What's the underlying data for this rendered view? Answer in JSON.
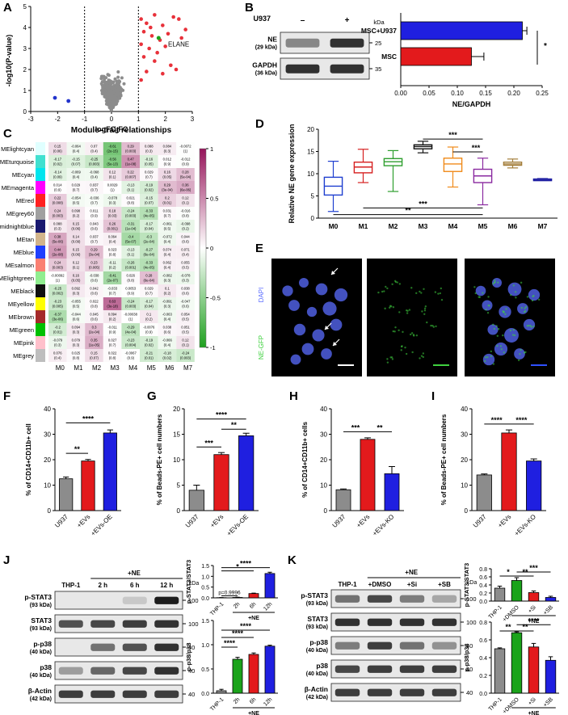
{
  "panels": [
    "A",
    "B",
    "C",
    "D",
    "E",
    "F",
    "G",
    "H",
    "I",
    "J",
    "K"
  ],
  "volcano": {
    "xlabel": "log2FC",
    "ylabel": "-log10(P-value)",
    "xticks": [
      "-3",
      "-2",
      "-1",
      "0",
      "1",
      "2",
      "3"
    ],
    "yticks": [
      "0",
      "1",
      "2",
      "3",
      "4",
      "5"
    ],
    "annotation": "ELANE",
    "colors": {
      "ns": "#8c8c8c",
      "up": "#e8313a",
      "down": "#2233cc",
      "hit": "#1aa31a"
    }
  },
  "blotB": {
    "header": "U937",
    "lanes": [
      "–",
      "+"
    ],
    "kda_label": "kDa",
    "rows": [
      {
        "name": "NE",
        "sub": "(29 kDa)",
        "marker": "25"
      },
      {
        "name": "GAPDH",
        "sub": "(36 kDa)",
        "marker": "35"
      }
    ]
  },
  "heatmap": {
    "title": "Module–trait relationships",
    "modules": [
      "MElightcyan",
      "MEturquoise",
      "MEcyan",
      "MEmagenta",
      "MEred",
      "MEgrey60",
      "MEmidnightblue",
      "MEtan",
      "MEblue",
      "MEsalmon",
      "MElightgreen",
      "MEblack",
      "MEyellow",
      "MEbrown",
      "MEgreen",
      "MEpink",
      "MEgrey"
    ],
    "module_colors": [
      "#e0ffff",
      "#40e0d0",
      "#00e5ee",
      "#ff00ff",
      "#ff2020",
      "#a0a0a0",
      "#191970",
      "#d2b48c",
      "#1f3fff",
      "#fa8072",
      "#90ee90",
      "#111111",
      "#ffff00",
      "#a52a2a",
      "#00c000",
      "#ffc0cb",
      "#bebebe"
    ],
    "traits": [
      "M0",
      "M1",
      "M2",
      "M3",
      "M4",
      "M5",
      "M6",
      "M7"
    ],
    "colorbar_ticks": [
      "1",
      "0.5",
      "0",
      "-0.5",
      "-1"
    ],
    "cells": [
      [
        "0.15",
        "-0.064",
        "0.07",
        "-0.61",
        "0.29",
        "0.088",
        "0.084",
        "-0.0072"
      ],
      [
        "-0.17",
        "-0.15",
        "-0.25",
        "-0.56",
        "0.47",
        "-0.16",
        "0.012",
        "-0.012"
      ],
      [
        "-0.14",
        "-0.069",
        "-0.068",
        "0.12",
        "0.22",
        "0.029",
        "0.16",
        "0.28"
      ],
      [
        "0.014",
        "0.029",
        "0.037",
        "0.0029",
        "-0.13",
        "-0.19",
        "0.29",
        "0.36"
      ],
      [
        "0.22",
        "-0.054",
        "-0.036",
        "-0.078",
        "0.021",
        "-0.15",
        "0.2",
        "0.12"
      ],
      [
        "0.24",
        "0.098",
        "0.011",
        "0.18",
        "-0.24",
        "-0.33",
        "0.031",
        "-0.016"
      ],
      [
        "0.088",
        "0.15",
        "0.043",
        "0.26",
        "-0.31",
        "-0.17",
        "-0.061",
        "-0.098"
      ],
      [
        "0.38",
        "0.14",
        "0.037",
        "0.064",
        "-0.4",
        "-0.3",
        "-0.072",
        "0.044"
      ],
      [
        "0.44",
        "0.15",
        "0.29",
        "0.023",
        "-0.13",
        "-0.27",
        "0.074",
        "0.071"
      ],
      [
        "0.24",
        "0.12",
        "0.23",
        "-0.11",
        "-0.26",
        "-0.33",
        "0.062",
        "0.055"
      ],
      [
        "-0.00092",
        "0.16",
        "-0.038",
        "-0.41",
        "0.026",
        "0.28",
        "-0.082",
        "-0.078"
      ],
      [
        "-0.25",
        "0.092",
        "0.042",
        "-0.033",
        "0.0053",
        "0.029",
        "0.1",
        "0.038"
      ],
      [
        "-0.23",
        "-0.055",
        "0.022",
        "0.63",
        "-0.24",
        "-0.17",
        "-0.091",
        "-0.047"
      ],
      [
        "-0.37",
        "-0.044",
        "0.045",
        "0.094",
        "-0.00038",
        "0.1",
        "-0.063",
        "0.054"
      ],
      [
        "-0.2",
        "0.094",
        "0.3",
        "-0.011",
        "-0.29",
        "-0.0076",
        "0.038",
        "0.051"
      ],
      [
        "-0.079",
        "0.079",
        "0.35",
        "0.027",
        "-0.23",
        "-0.19",
        "-0.066",
        "0.12"
      ],
      [
        "0.076",
        "0.025",
        "0.15",
        "0.022",
        "-0.0067",
        "-0.21",
        "-0.18",
        "-0.24"
      ]
    ],
    "pvals": [
      [
        "(0.06)",
        "(0.4)",
        "(0.4)",
        "(2e-15)",
        "(0.003)",
        "(0.3)",
        "(0.3)",
        "(1)"
      ],
      [
        "(0.02)",
        "(0.07)",
        "(0.003)",
        "(5e-13)",
        "(1e-08)",
        "(0.05)",
        "(0.9)",
        "(0.9)"
      ],
      [
        "(0.09)",
        "(0.4)",
        "(0.4)",
        "(0.1)",
        "(0.007)",
        "(0.7)",
        "(0.05)",
        "(5e-04)"
      ],
      [
        "(0.9)",
        "(0.7)",
        "(0.7)",
        "(1)",
        "(0.1)",
        "(0.02)",
        "(3e-04)",
        "(6e-06)"
      ],
      [
        "(0.008)",
        "(0.5)",
        "(0.7)",
        "(0.3)",
        "(0.8)",
        "(0.07)",
        "(0.01)",
        "(0.1)"
      ],
      [
        "(0.003)",
        "(0.2)",
        "(0.9)",
        "(0.03)",
        "(0.003)",
        "(4e-05)",
        "(0.7)",
        "(0.8)"
      ],
      [
        "(0.3)",
        "(0.06)",
        "(0.6)",
        "(0.001)",
        "(1e-04)",
        "(0.04)",
        "(0.5)",
        "(0.2)"
      ],
      [
        "(5e-06)",
        "(0.09)",
        "(0.7)",
        "(0.4)",
        "(5e-07)",
        "(2e-04)",
        "(0.4)",
        "(0.6)"
      ],
      [
        "(2e-08)",
        "(0.06)",
        "(3e-04)",
        "(0.8)",
        "(0.1)",
        "(6e-04)",
        "(0.4)",
        "(0.4)"
      ],
      [
        "(0.003)",
        "(0.1)",
        "(0.005)",
        "(0.2)",
        "(0.001)",
        "(4e-05)",
        "(0.4)",
        "(0.5)"
      ],
      [
        "(1)",
        "(0.05)",
        "(0.6)",
        "(2e-07)",
        "(0.8)",
        "(6e-04)",
        "(0.3)",
        "(0.3)"
      ],
      [
        "(0.002)",
        "(0.3)",
        "(0.6)",
        "(0.7)",
        "(0.9)",
        "(0.7)",
        "(0.2)",
        "(0.6)"
      ],
      [
        "(0.005)",
        "(0.5)",
        "(0.8)",
        "(3e-18)",
        "(0.003)",
        "(0.04)",
        "(0.3)",
        "(0.6)"
      ],
      [
        "(3e-06)",
        "(0.6)",
        "(0.6)",
        "(0.2)",
        "(1)",
        "(0.2)",
        "(0.4)",
        "(0.5)"
      ],
      [
        "(0.01)",
        "(0.3)",
        "(2e-04)",
        "(0.9)",
        "(4e-04)",
        "(0.9)",
        "(0.6)",
        "(0.5)"
      ],
      [
        "(0.3)",
        "(0.3)",
        "(1e-05)",
        "(0.7)",
        "(0.004)",
        "(0.02)",
        "(0.4)",
        "(0.1)"
      ],
      [
        "(0.4)",
        "(0.8)",
        "(0.07)",
        "(0.8)",
        "(0.9)",
        "(0.01)",
        "(0.02)",
        "(0.003)"
      ]
    ]
  },
  "microscopy": {
    "labels": [
      "DAPI",
      "NE-GFP"
    ],
    "colors": {
      "dapi": "#5a6cff",
      "gfp": "#3fd13f"
    }
  },
  "blotJ": {
    "header": "+NE",
    "lanes": [
      "THP-1",
      "2 h",
      "6 h",
      "12 h"
    ],
    "kda_label": "kDa",
    "rows": [
      {
        "name": "p-STAT3",
        "sub": "(93 kDa)",
        "marker": "100"
      },
      {
        "name": "STAT3",
        "sub": "(93 kDa)",
        "marker": "100"
      },
      {
        "name": "p-p38",
        "sub": "(40 kDa)",
        "marker": "40"
      },
      {
        "name": "p38",
        "sub": "(40 kDa)",
        "marker": "40"
      },
      {
        "name": "β-Actin",
        "sub": "(42 kDa)",
        "marker": "40"
      }
    ]
  },
  "blotK": {
    "header": "+NE",
    "lanes": [
      "THP-1",
      "+DMSO",
      "+Si",
      "+SB"
    ],
    "kda_label": "kDa",
    "rows": [
      {
        "name": "p-STAT3",
        "sub": "(93 kDa)",
        "marker": "100"
      },
      {
        "name": "STAT3",
        "sub": "(93 kDa)",
        "marker": "100"
      },
      {
        "name": "p-p38",
        "sub": "(40 kDa)",
        "marker": "40"
      },
      {
        "name": "p38",
        "sub": "(40 kDa)",
        "marker": "40"
      },
      {
        "name": "β-Actin",
        "sub": "(42 kDa)",
        "marker": "40"
      }
    ]
  },
  "chart_data": [
    {
      "panel": "B",
      "type": "bar",
      "orientation": "horizontal",
      "categories": [
        "MSC+U937",
        "MSC"
      ],
      "values": [
        0.215,
        0.125
      ],
      "errors": [
        0.008,
        0.022
      ],
      "colors": [
        "#1f1fe0",
        "#e31a1c"
      ],
      "xlabel": "NE/GAPDH",
      "xlim": [
        0,
        0.25
      ],
      "ticks": [
        "0.00",
        "0.05",
        "0.10",
        "0.15",
        "0.20",
        "0.25"
      ],
      "sig": [
        {
          "a": 0,
          "b": 1,
          "label": "*"
        }
      ]
    },
    {
      "panel": "D",
      "type": "box",
      "categories": [
        "M0",
        "M1",
        "M2",
        "M3",
        "M4",
        "M5",
        "M6",
        "M7"
      ],
      "ylabel": "Relative NE gene expression",
      "ylim": [
        0,
        20
      ],
      "ticks": [
        "0",
        "5",
        "10",
        "15",
        "20"
      ],
      "colors": [
        "#1f3fd0",
        "#d62020",
        "#2e9e2e",
        "#111111",
        "#f08a1a",
        "#8a2aa0",
        "#a37e3a",
        "#1a1aa0"
      ],
      "boxes": [
        {
          "min": 1.5,
          "q1": 5.2,
          "median": 7.2,
          "q3": 9.2,
          "max": 12.8
        },
        {
          "min": 8.0,
          "q1": 10.2,
          "median": 11.5,
          "q3": 12.6,
          "max": 15.5
        },
        {
          "min": 6.0,
          "q1": 11.8,
          "median": 12.7,
          "q3": 13.4,
          "max": 15.2
        },
        {
          "min": 14.7,
          "q1": 15.6,
          "median": 16.1,
          "q3": 16.5,
          "max": 17.3
        },
        {
          "min": 7.0,
          "q1": 10.5,
          "median": 12.2,
          "q3": 13.5,
          "max": 16.0
        },
        {
          "min": 3.0,
          "q1": 8.0,
          "median": 9.5,
          "q3": 11.0,
          "max": 13.5
        },
        {
          "min": 11.3,
          "q1": 11.9,
          "median": 12.2,
          "q3": 12.6,
          "max": 13.3
        },
        {
          "min": 8.5,
          "q1": 8.6,
          "median": 8.7,
          "q3": 8.8,
          "max": 8.9
        }
      ],
      "sig": [
        {
          "a": 3,
          "b": 5,
          "y": 17.8,
          "label": "***"
        },
        {
          "a": 4,
          "b": 5,
          "y": 14.9,
          "label": "***"
        },
        {
          "a": 1,
          "b": 5,
          "y": 2.3,
          "label": "***"
        },
        {
          "a": 0,
          "b": 5,
          "y": 0.8,
          "label": "**"
        }
      ]
    },
    {
      "panel": "F",
      "type": "bar",
      "categories": [
        "U937",
        "+EVs",
        "+EVs-OE"
      ],
      "values": [
        12.5,
        19.5,
        30.5
      ],
      "errors": [
        0.7,
        0.6,
        1.2
      ],
      "colors": [
        "#8c8c8c",
        "#e31a1c",
        "#1f1fe0"
      ],
      "ylabel": "% of CD14+CD11b+ cell",
      "ylim": [
        0,
        40
      ],
      "ticks": [
        "0",
        "10",
        "20",
        "30",
        "40"
      ],
      "sig": [
        {
          "a": 0,
          "b": 1,
          "y": 22.5,
          "label": "**"
        },
        {
          "a": 0,
          "b": 2,
          "y": 34.5,
          "label": "****"
        }
      ]
    },
    {
      "panel": "G",
      "type": "bar",
      "categories": [
        "U937",
        "+EVs",
        "+EVs-OE"
      ],
      "values": [
        4.0,
        11.0,
        14.7
      ],
      "errors": [
        1.0,
        0.4,
        0.5
      ],
      "colors": [
        "#8c8c8c",
        "#e31a1c",
        "#1f1fe0"
      ],
      "ylabel": "% of Beads-PE+ cell numbers",
      "ylim": [
        0,
        20
      ],
      "ticks": [
        "0",
        "5",
        "10",
        "15",
        "20"
      ],
      "sig": [
        {
          "a": 0,
          "b": 1,
          "y": 12.5,
          "label": "***"
        },
        {
          "a": 1,
          "b": 2,
          "y": 16.0,
          "label": "**"
        },
        {
          "a": 0,
          "b": 2,
          "y": 18.0,
          "label": "****"
        }
      ]
    },
    {
      "panel": "H",
      "type": "bar",
      "categories": [
        "U937",
        "+EVs",
        "+EVs-KO"
      ],
      "values": [
        8.2,
        28.0,
        14.5
      ],
      "errors": [
        0.3,
        0.6,
        2.8
      ],
      "colors": [
        "#8c8c8c",
        "#e31a1c",
        "#1f1fe0"
      ],
      "ylabel": "% of CD14+CD11b+ cells",
      "ylim": [
        0,
        40
      ],
      "ticks": [
        "0",
        "10",
        "20",
        "30",
        "40"
      ],
      "sig": [
        {
          "a": 0,
          "b": 1,
          "y": 31.0,
          "label": "***"
        },
        {
          "a": 1,
          "b": 2,
          "y": 31.0,
          "label": "**"
        }
      ]
    },
    {
      "panel": "I",
      "type": "bar",
      "categories": [
        "U937",
        "+EVs",
        "+EVs-KO"
      ],
      "values": [
        14.0,
        30.5,
        19.5
      ],
      "errors": [
        0.4,
        1.2,
        0.8
      ],
      "colors": [
        "#8c8c8c",
        "#e31a1c",
        "#1f1fe0"
      ],
      "ylabel": "% of Beads-PE+ cell numbers",
      "ylim": [
        0,
        40
      ],
      "ticks": [
        "0",
        "10",
        "20",
        "30",
        "40"
      ],
      "sig": [
        {
          "a": 0,
          "b": 1,
          "y": 34.0,
          "label": "****"
        },
        {
          "a": 1,
          "b": 2,
          "y": 34.0,
          "label": "****"
        }
      ]
    },
    {
      "panel": "J-top",
      "type": "bar",
      "categories": [
        "THP-1",
        "2h",
        "6h",
        "12h"
      ],
      "values": [
        0.01,
        0.02,
        0.2,
        1.13
      ],
      "errors": [
        0.005,
        0.01,
        0.02,
        0.06
      ],
      "colors": [
        "#8c8c8c",
        "#1aa31a",
        "#e31a1c",
        "#1f1fe0"
      ],
      "ylabel": "p-STAT3/STAT3",
      "ylim": [
        0,
        1.5
      ],
      "ticks": [
        "0.0",
        "0.5",
        "1.0",
        "1.5"
      ],
      "group_label": "+NE",
      "sig": [
        {
          "a": 0,
          "b": 1,
          "y": 0.1,
          "label": "p=0.9996"
        },
        {
          "a": 0,
          "b": 2,
          "y": 1.25,
          "label": "*"
        },
        {
          "a": 0,
          "b": 3,
          "y": 1.4,
          "label": "****"
        }
      ]
    },
    {
      "panel": "J-bottom",
      "type": "bar",
      "categories": [
        "THP-1",
        "2h",
        "6h",
        "12h"
      ],
      "values": [
        0.05,
        0.7,
        0.8,
        0.97
      ],
      "errors": [
        0.03,
        0.04,
        0.03,
        0.02
      ],
      "colors": [
        "#8c8c8c",
        "#1aa31a",
        "#e31a1c",
        "#1f1fe0"
      ],
      "ylabel": "p-p38/p38",
      "ylim": [
        0,
        1.5
      ],
      "ticks": [
        "0.0",
        "0.5",
        "1.0",
        "1.5"
      ],
      "group_label": "+NE",
      "sig": [
        {
          "a": 0,
          "b": 1,
          "y": 0.95,
          "label": "****"
        },
        {
          "a": 0,
          "b": 2,
          "y": 1.15,
          "label": "****"
        },
        {
          "a": 0,
          "b": 3,
          "y": 1.3,
          "label": "****"
        }
      ]
    },
    {
      "panel": "K-top",
      "type": "bar",
      "categories": [
        "THP-1",
        "+DMSO",
        "+Si",
        "+SB"
      ],
      "values": [
        0.32,
        0.51,
        0.21,
        0.09
      ],
      "errors": [
        0.05,
        0.07,
        0.04,
        0.03
      ],
      "colors": [
        "#8c8c8c",
        "#1aa31a",
        "#e31a1c",
        "#1f1fe0"
      ],
      "ylabel": "p-STAT3/STAT3",
      "ylim": [
        0,
        0.8
      ],
      "ticks": [
        "0.0",
        "0.2",
        "0.4",
        "0.6",
        "0.8"
      ],
      "group_label": "+NE",
      "sig": [
        {
          "a": 0,
          "b": 1,
          "y": 0.62,
          "label": "*"
        },
        {
          "a": 1,
          "b": 2,
          "y": 0.62,
          "label": "**"
        },
        {
          "a": 1,
          "b": 3,
          "y": 0.72,
          "label": "***"
        }
      ]
    },
    {
      "panel": "K-bottom",
      "type": "bar",
      "categories": [
        "THP-1",
        "+DMSO",
        "+Si",
        "+SB"
      ],
      "values": [
        0.5,
        0.68,
        0.52,
        0.37
      ],
      "errors": [
        0.01,
        0.01,
        0.04,
        0.04
      ],
      "colors": [
        "#8c8c8c",
        "#1aa31a",
        "#e31a1c",
        "#1f1fe0"
      ],
      "ylabel": "p-p38/p38",
      "ylim": [
        0,
        0.8
      ],
      "ticks": [
        "0.0",
        "0.2",
        "0.4",
        "0.6",
        "0.8"
      ],
      "group_label": "+NE",
      "sig": [
        {
          "a": 0,
          "b": 1,
          "y": 0.7,
          "label": "**"
        },
        {
          "a": 1,
          "b": 2,
          "y": 0.7,
          "label": "**"
        },
        {
          "a": 1,
          "b": 3,
          "y": 0.77,
          "label": "****"
        }
      ]
    }
  ]
}
